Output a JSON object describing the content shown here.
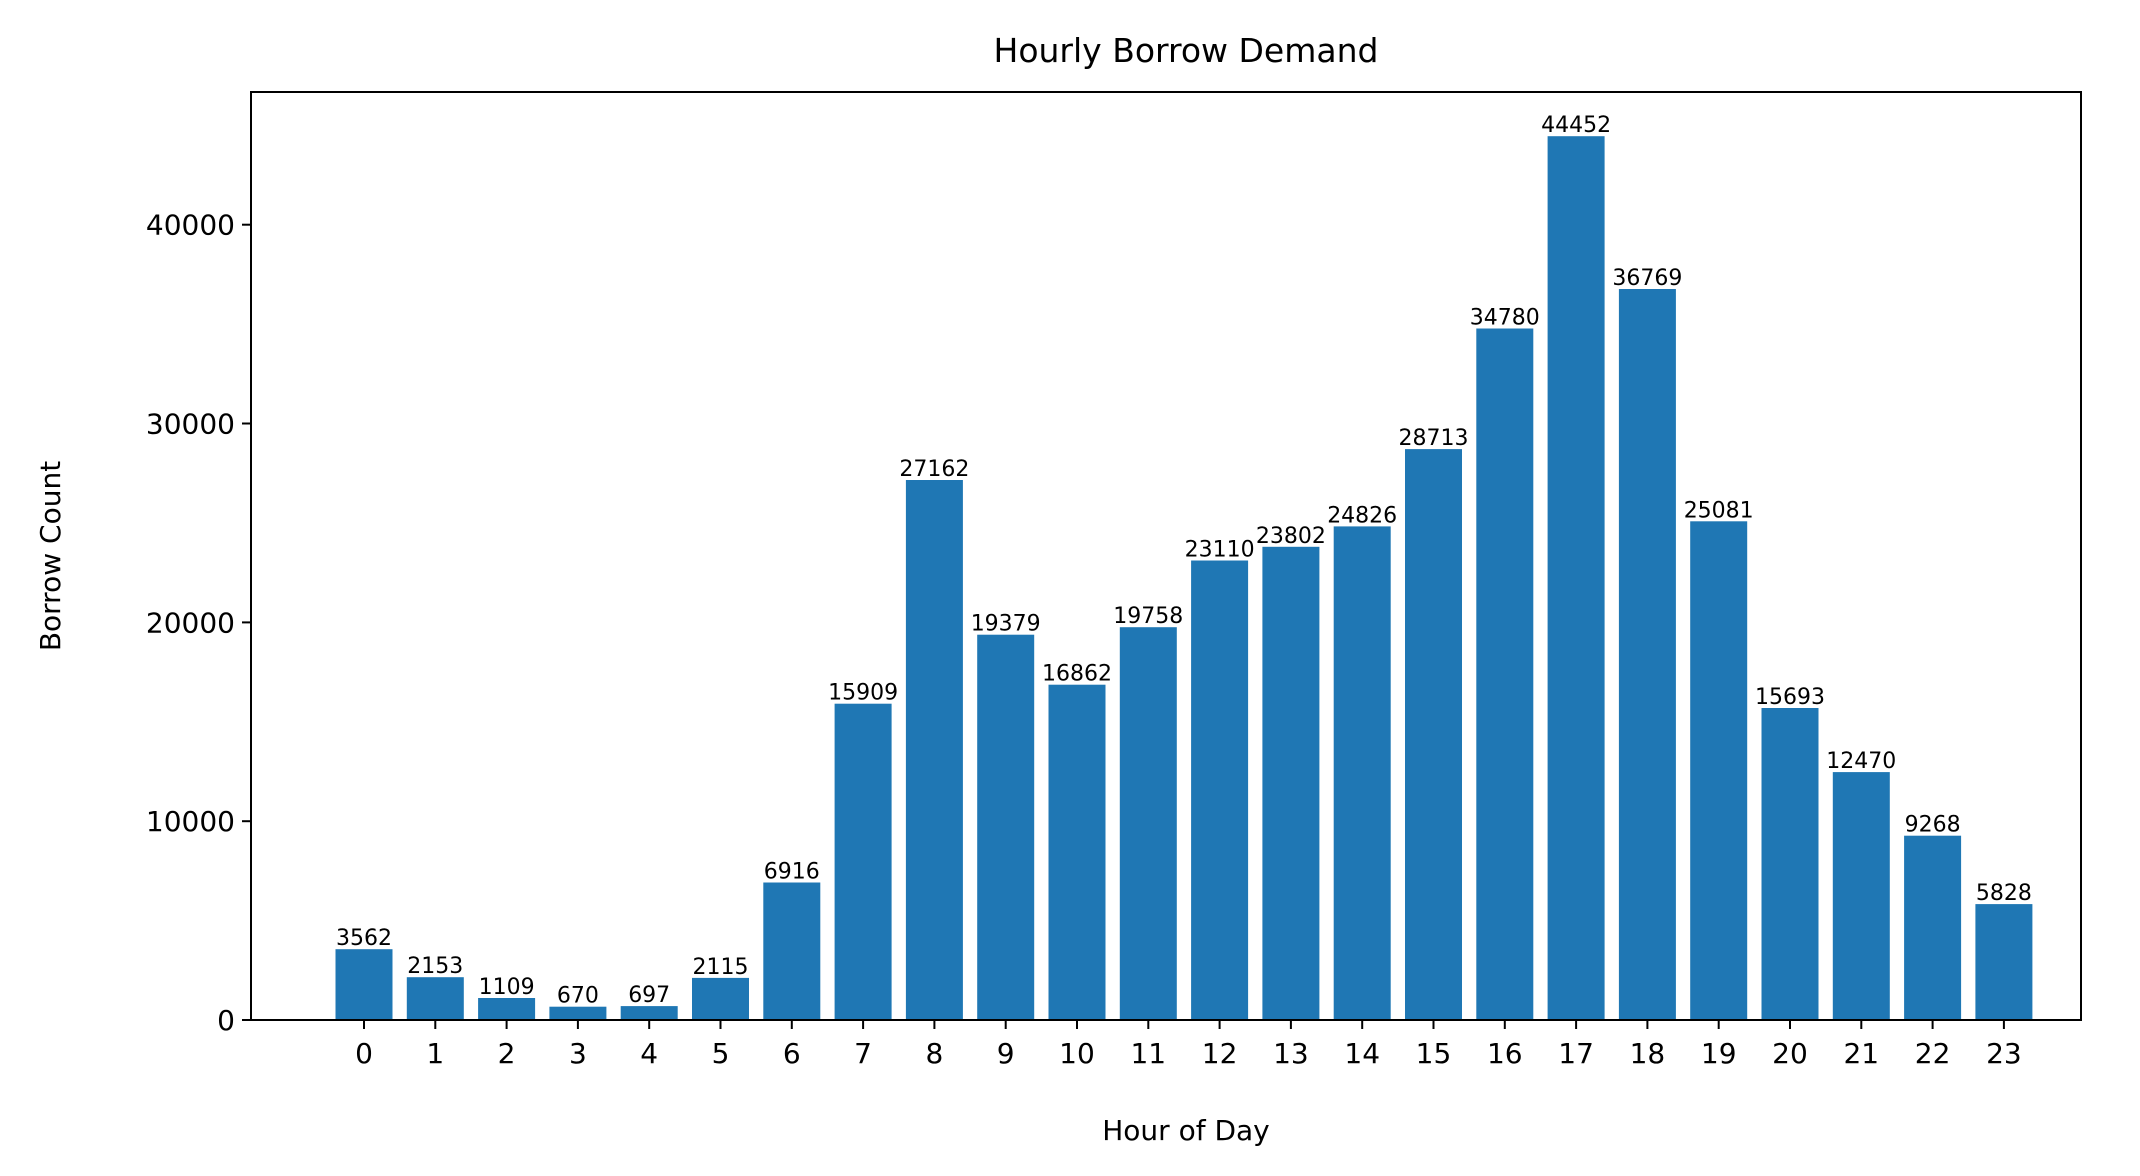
{
  "chart_data": {
    "type": "bar",
    "title": "Hourly Borrow Demand",
    "xlabel": "Hour of Day",
    "ylabel": "Borrow Count",
    "categories": [
      "0",
      "1",
      "2",
      "3",
      "4",
      "5",
      "6",
      "7",
      "8",
      "9",
      "10",
      "11",
      "12",
      "13",
      "14",
      "15",
      "16",
      "17",
      "18",
      "19",
      "20",
      "21",
      "22",
      "23"
    ],
    "values": [
      3562,
      2153,
      1109,
      670,
      697,
      2115,
      6916,
      15909,
      27162,
      19379,
      16862,
      19758,
      23110,
      23802,
      24826,
      28713,
      34780,
      44452,
      36769,
      25081,
      15693,
      12470,
      9268,
      5828
    ],
    "yticks": [
      0,
      10000,
      20000,
      30000,
      40000
    ],
    "ylim": [
      0,
      46675
    ],
    "grid": false,
    "bar_color": "#1f77b4"
  }
}
